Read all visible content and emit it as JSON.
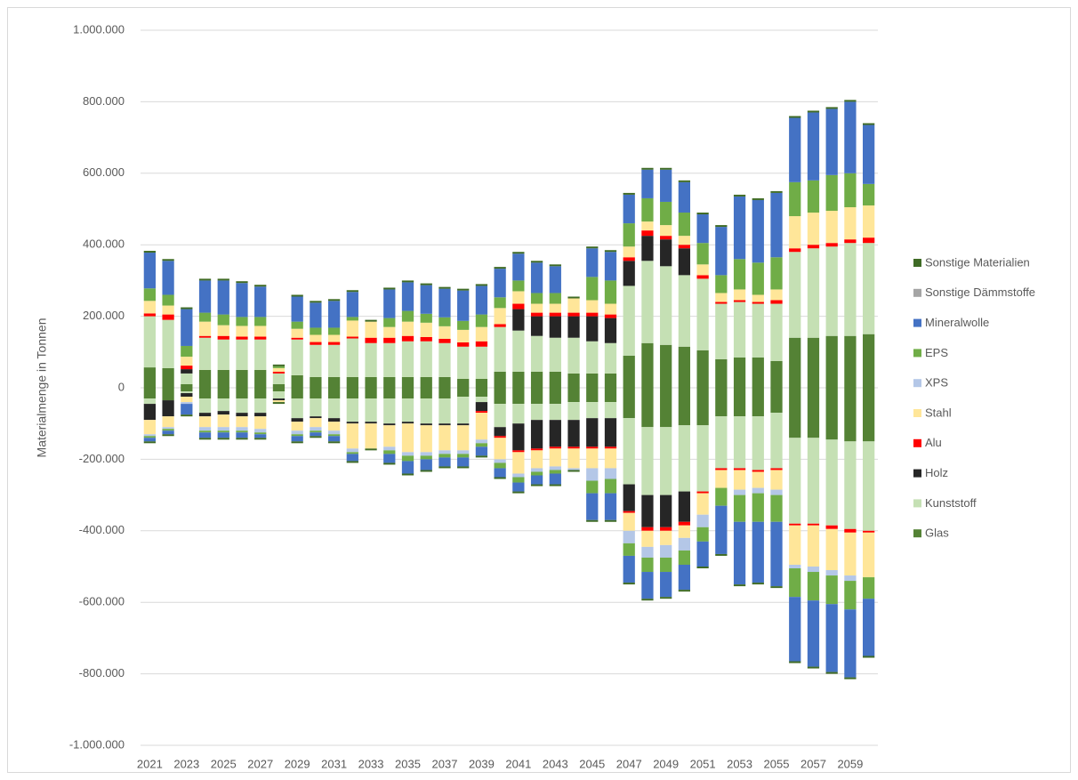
{
  "chart_data": {
    "type": "stacked_bar_diverging",
    "y_label": "Materialmenge in Tonnen",
    "categories": [
      "2021",
      null,
      "2023",
      null,
      "2025",
      null,
      "2027",
      null,
      "2029",
      null,
      "2031",
      null,
      "2033",
      null,
      "2035",
      null,
      "2037",
      null,
      "2039",
      null,
      "2041",
      null,
      "2043",
      null,
      "2045",
      null,
      "2047",
      null,
      "2049",
      null,
      "2051",
      null,
      "2053",
      null,
      "2055",
      null,
      "2057",
      null,
      "2059",
      null
    ],
    "ylim": [
      -1000000,
      1000000
    ],
    "yticks": [
      {
        "value": -1000000,
        "label": "-1.000.000"
      },
      {
        "value": -800000,
        "label": "-800.000"
      },
      {
        "value": -600000,
        "label": "-600.000"
      },
      {
        "value": -400000,
        "label": "-400.000"
      },
      {
        "value": -200000,
        "label": "-200.000"
      },
      0,
      {
        "value": 200000,
        "label": "200.000"
      },
      {
        "value": 400000,
        "label": "400.000"
      },
      {
        "value": 600000,
        "label": "600.000"
      },
      {
        "value": 800000,
        "label": "800.000"
      },
      {
        "value": 1000000,
        "label": "1.000.000"
      }
    ],
    "grid": true,
    "legend": "right",
    "series": [
      {
        "name": "Glas",
        "color": "#548235",
        "values": [
          57000,
          55000,
          10000,
          50000,
          50000,
          50000,
          50000,
          10000,
          35000,
          30000,
          30000,
          30000,
          30000,
          30000,
          30000,
          30000,
          30000,
          25000,
          25000,
          45000,
          45000,
          45000,
          45000,
          40000,
          40000,
          40000,
          90000,
          125000,
          120000,
          115000,
          105000,
          80000,
          85000,
          85000,
          75000,
          140000,
          140000,
          145000,
          145000,
          150000
        ],
        "negative_values": [
          -30000,
          -35000,
          -10000,
          -30000,
          -30000,
          -30000,
          -30000,
          -10000,
          -30000,
          -30000,
          -30000,
          -30000,
          -30000,
          -30000,
          -30000,
          -30000,
          -30000,
          -25000,
          -25000,
          -45000,
          -45000,
          -45000,
          -45000,
          -40000,
          -40000,
          -40000,
          -85000,
          -110000,
          -110000,
          -105000,
          -105000,
          -80000,
          -80000,
          -80000,
          -70000,
          -140000,
          -140000,
          -145000,
          -150000,
          -150000
        ]
      },
      {
        "name": "Kunststoff",
        "color": "#c5e0b4",
        "values": [
          143000,
          135000,
          30000,
          90000,
          85000,
          85000,
          85000,
          30000,
          100000,
          90000,
          90000,
          108000,
          95000,
          95000,
          100000,
          100000,
          95000,
          90000,
          90000,
          125000,
          115000,
          100000,
          95000,
          100000,
          90000,
          85000,
          195000,
          230000,
          220000,
          200000,
          200000,
          155000,
          155000,
          150000,
          160000,
          240000,
          250000,
          250000,
          260000,
          255000
        ],
        "negative_values": [
          -15000,
          0,
          -5000,
          -40000,
          -35000,
          -40000,
          -40000,
          -20000,
          -55000,
          -50000,
          -55000,
          -65000,
          -65000,
          -70000,
          -65000,
          -70000,
          -70000,
          -75000,
          -15000,
          -65000,
          -55000,
          -45000,
          -45000,
          -50000,
          -45000,
          -45000,
          -185000,
          -190000,
          -190000,
          -185000,
          -185000,
          -145000,
          -145000,
          -150000,
          -155000,
          -240000,
          -240000,
          -240000,
          -245000,
          -250000
        ]
      },
      {
        "name": "Holz",
        "color": "#262626",
        "values": [
          0,
          0,
          12000,
          0,
          0,
          0,
          0,
          0,
          0,
          0,
          0,
          0,
          0,
          0,
          0,
          0,
          0,
          0,
          0,
          0,
          60000,
          55000,
          60000,
          60000,
          70000,
          70000,
          70000,
          70000,
          75000,
          75000,
          0,
          0,
          0,
          0,
          0,
          0,
          0,
          0,
          0,
          0
        ],
        "negative_values": [
          -45000,
          -45000,
          -10000,
          -10000,
          -10000,
          -10000,
          -10000,
          -5000,
          -10000,
          -5000,
          -10000,
          -5000,
          -5000,
          -5000,
          -5000,
          -5000,
          -5000,
          -5000,
          -25000,
          -25000,
          -75000,
          -80000,
          -75000,
          -75000,
          -80000,
          -80000,
          -75000,
          -90000,
          -90000,
          -85000,
          0,
          0,
          0,
          0,
          0,
          0,
          0,
          0,
          0,
          0
        ]
      },
      {
        "name": "Alu",
        "color": "#ff0000",
        "values": [
          8000,
          15000,
          10000,
          5000,
          10000,
          8000,
          8000,
          5000,
          5000,
          8000,
          8000,
          5000,
          15000,
          15000,
          15000,
          12000,
          12000,
          12000,
          15000,
          8000,
          15000,
          10000,
          10000,
          10000,
          10000,
          10000,
          10000,
          15000,
          10000,
          10000,
          10000,
          5000,
          5000,
          5000,
          10000,
          10000,
          10000,
          10000,
          10000,
          15000
        ],
        "negative_values": [
          0,
          0,
          0,
          0,
          0,
          0,
          0,
          0,
          0,
          0,
          0,
          0,
          0,
          0,
          0,
          0,
          0,
          0,
          -5000,
          -5000,
          -5000,
          -5000,
          -5000,
          -5000,
          -5000,
          -5000,
          -5000,
          -10000,
          -10000,
          -10000,
          -5000,
          -5000,
          -5000,
          -5000,
          -5000,
          -5000,
          -5000,
          -10000,
          -10000,
          -5000
        ]
      },
      {
        "name": "Stahl",
        "color": "#ffe699",
        "values": [
          35000,
          25000,
          25000,
          40000,
          30000,
          30000,
          30000,
          10000,
          25000,
          20000,
          20000,
          45000,
          45000,
          30000,
          40000,
          40000,
          35000,
          35000,
          40000,
          45000,
          35000,
          25000,
          25000,
          40000,
          35000,
          30000,
          30000,
          25000,
          30000,
          25000,
          30000,
          25000,
          30000,
          20000,
          30000,
          90000,
          90000,
          90000,
          90000,
          90000
        ],
        "negative_values": [
          -40000,
          -30000,
          -15000,
          -30000,
          -35000,
          -30000,
          -35000,
          -5000,
          -25000,
          -25000,
          -25000,
          -70000,
          -70000,
          -60000,
          -80000,
          -75000,
          -70000,
          -70000,
          -75000,
          -60000,
          -60000,
          -50000,
          -50000,
          -55000,
          -55000,
          -55000,
          -50000,
          -45000,
          -40000,
          -35000,
          -60000,
          -50000,
          -55000,
          -45000,
          -55000,
          -110000,
          -115000,
          -115000,
          -120000,
          -125000
        ]
      },
      {
        "name": "XPS",
        "color": "#b4c7e7",
        "values": [
          0,
          0,
          0,
          0,
          0,
          0,
          0,
          0,
          0,
          0,
          0,
          0,
          0,
          0,
          0,
          0,
          0,
          0,
          0,
          0,
          0,
          0,
          0,
          0,
          0,
          0,
          0,
          0,
          0,
          0,
          0,
          0,
          0,
          0,
          0,
          0,
          0,
          0,
          0,
          0
        ],
        "negative_values": [
          -5000,
          -5000,
          -5000,
          -10000,
          -10000,
          -10000,
          -10000,
          0,
          -10000,
          -10000,
          -10000,
          -10000,
          0,
          -10000,
          -10000,
          -10000,
          -10000,
          -10000,
          -10000,
          -10000,
          -10000,
          -10000,
          -10000,
          -5000,
          -35000,
          -30000,
          -35000,
          -30000,
          -35000,
          -35000,
          -35000,
          0,
          -15000,
          -15000,
          -15000,
          -10000,
          -15000,
          -15000,
          -15000,
          0
        ]
      },
      {
        "name": "EPS",
        "color": "#70ad47",
        "values": [
          35000,
          30000,
          30000,
          25000,
          30000,
          25000,
          25000,
          5000,
          20000,
          20000,
          20000,
          10000,
          0,
          25000,
          30000,
          25000,
          25000,
          25000,
          35000,
          30000,
          30000,
          30000,
          30000,
          0,
          65000,
          65000,
          65000,
          65000,
          65000,
          65000,
          60000,
          50000,
          85000,
          90000,
          90000,
          95000,
          90000,
          100000,
          95000,
          60000
        ],
        "negative_values": [
          -5000,
          -5000,
          0,
          -5000,
          -5000,
          -5000,
          -5000,
          0,
          -5000,
          -5000,
          -5000,
          -5000,
          0,
          -10000,
          -15000,
          -10000,
          -10000,
          -10000,
          -10000,
          -15000,
          -15000,
          -10000,
          -10000,
          0,
          -35000,
          -40000,
          -35000,
          -40000,
          -40000,
          -40000,
          -40000,
          -50000,
          -75000,
          -80000,
          -75000,
          -80000,
          -80000,
          -80000,
          -80000,
          -60000
        ]
      },
      {
        "name": "Mineralwolle",
        "color": "#4472c4",
        "values": [
          100000,
          95000,
          103000,
          90000,
          95000,
          95000,
          85000,
          0,
          70000,
          70000,
          75000,
          70000,
          0,
          80000,
          80000,
          80000,
          80000,
          85000,
          80000,
          80000,
          75000,
          85000,
          75000,
          0,
          80000,
          80000,
          80000,
          80000,
          90000,
          85000,
          80000,
          135000,
          175000,
          175000,
          180000,
          180000,
          190000,
          185000,
          200000,
          165000
        ],
        "negative_values": [
          -10000,
          -10000,
          -30000,
          -15000,
          -15000,
          -15000,
          -10000,
          0,
          -15000,
          -10000,
          -15000,
          -20000,
          0,
          -25000,
          -35000,
          -30000,
          -25000,
          -25000,
          -25000,
          -25000,
          -25000,
          -25000,
          -30000,
          0,
          -75000,
          -75000,
          -75000,
          -75000,
          -70000,
          -70000,
          -70000,
          -135000,
          -175000,
          -170000,
          -180000,
          -180000,
          -185000,
          -190000,
          -190000,
          -160000
        ]
      },
      {
        "name": "Sonstige Dämmstoffe",
        "color": "#a5a5a5",
        "values": [
          0,
          0,
          0,
          0,
          0,
          0,
          0,
          0,
          0,
          0,
          0,
          0,
          0,
          0,
          0,
          0,
          0,
          0,
          0,
          0,
          0,
          0,
          0,
          0,
          0,
          0,
          0,
          0,
          0,
          0,
          0,
          0,
          0,
          0,
          0,
          0,
          0,
          0,
          0,
          0
        ],
        "negative_values": [
          0,
          0,
          0,
          0,
          0,
          0,
          0,
          0,
          0,
          0,
          0,
          0,
          0,
          0,
          0,
          0,
          0,
          0,
          0,
          0,
          0,
          0,
          0,
          0,
          0,
          0,
          0,
          0,
          0,
          0,
          0,
          0,
          0,
          0,
          0,
          0,
          0,
          0,
          0,
          0
        ]
      },
      {
        "name": "Sonstige Materialien",
        "color": "#3f6b26",
        "values": [
          5000,
          5000,
          5000,
          5000,
          5000,
          5000,
          5000,
          5000,
          5000,
          5000,
          5000,
          5000,
          5000,
          5000,
          5000,
          5000,
          5000,
          5000,
          5000,
          5000,
          5000,
          5000,
          5000,
          5000,
          5000,
          5000,
          5000,
          5000,
          5000,
          5000,
          5000,
          5000,
          5000,
          5000,
          5000,
          5000,
          5000,
          5000,
          5000,
          5000
        ],
        "negative_values": [
          -5000,
          -5000,
          -5000,
          -5000,
          -5000,
          -5000,
          -5000,
          -5000,
          -5000,
          -5000,
          -5000,
          -5000,
          -5000,
          -5000,
          -5000,
          -5000,
          -5000,
          -5000,
          -5000,
          -5000,
          -5000,
          -5000,
          -5000,
          -5000,
          -5000,
          -5000,
          -5000,
          -5000,
          -5000,
          -5000,
          -5000,
          -5000,
          -5000,
          -5000,
          -5000,
          -5000,
          -5000,
          -5000,
          -5000,
          -5000
        ]
      }
    ]
  }
}
